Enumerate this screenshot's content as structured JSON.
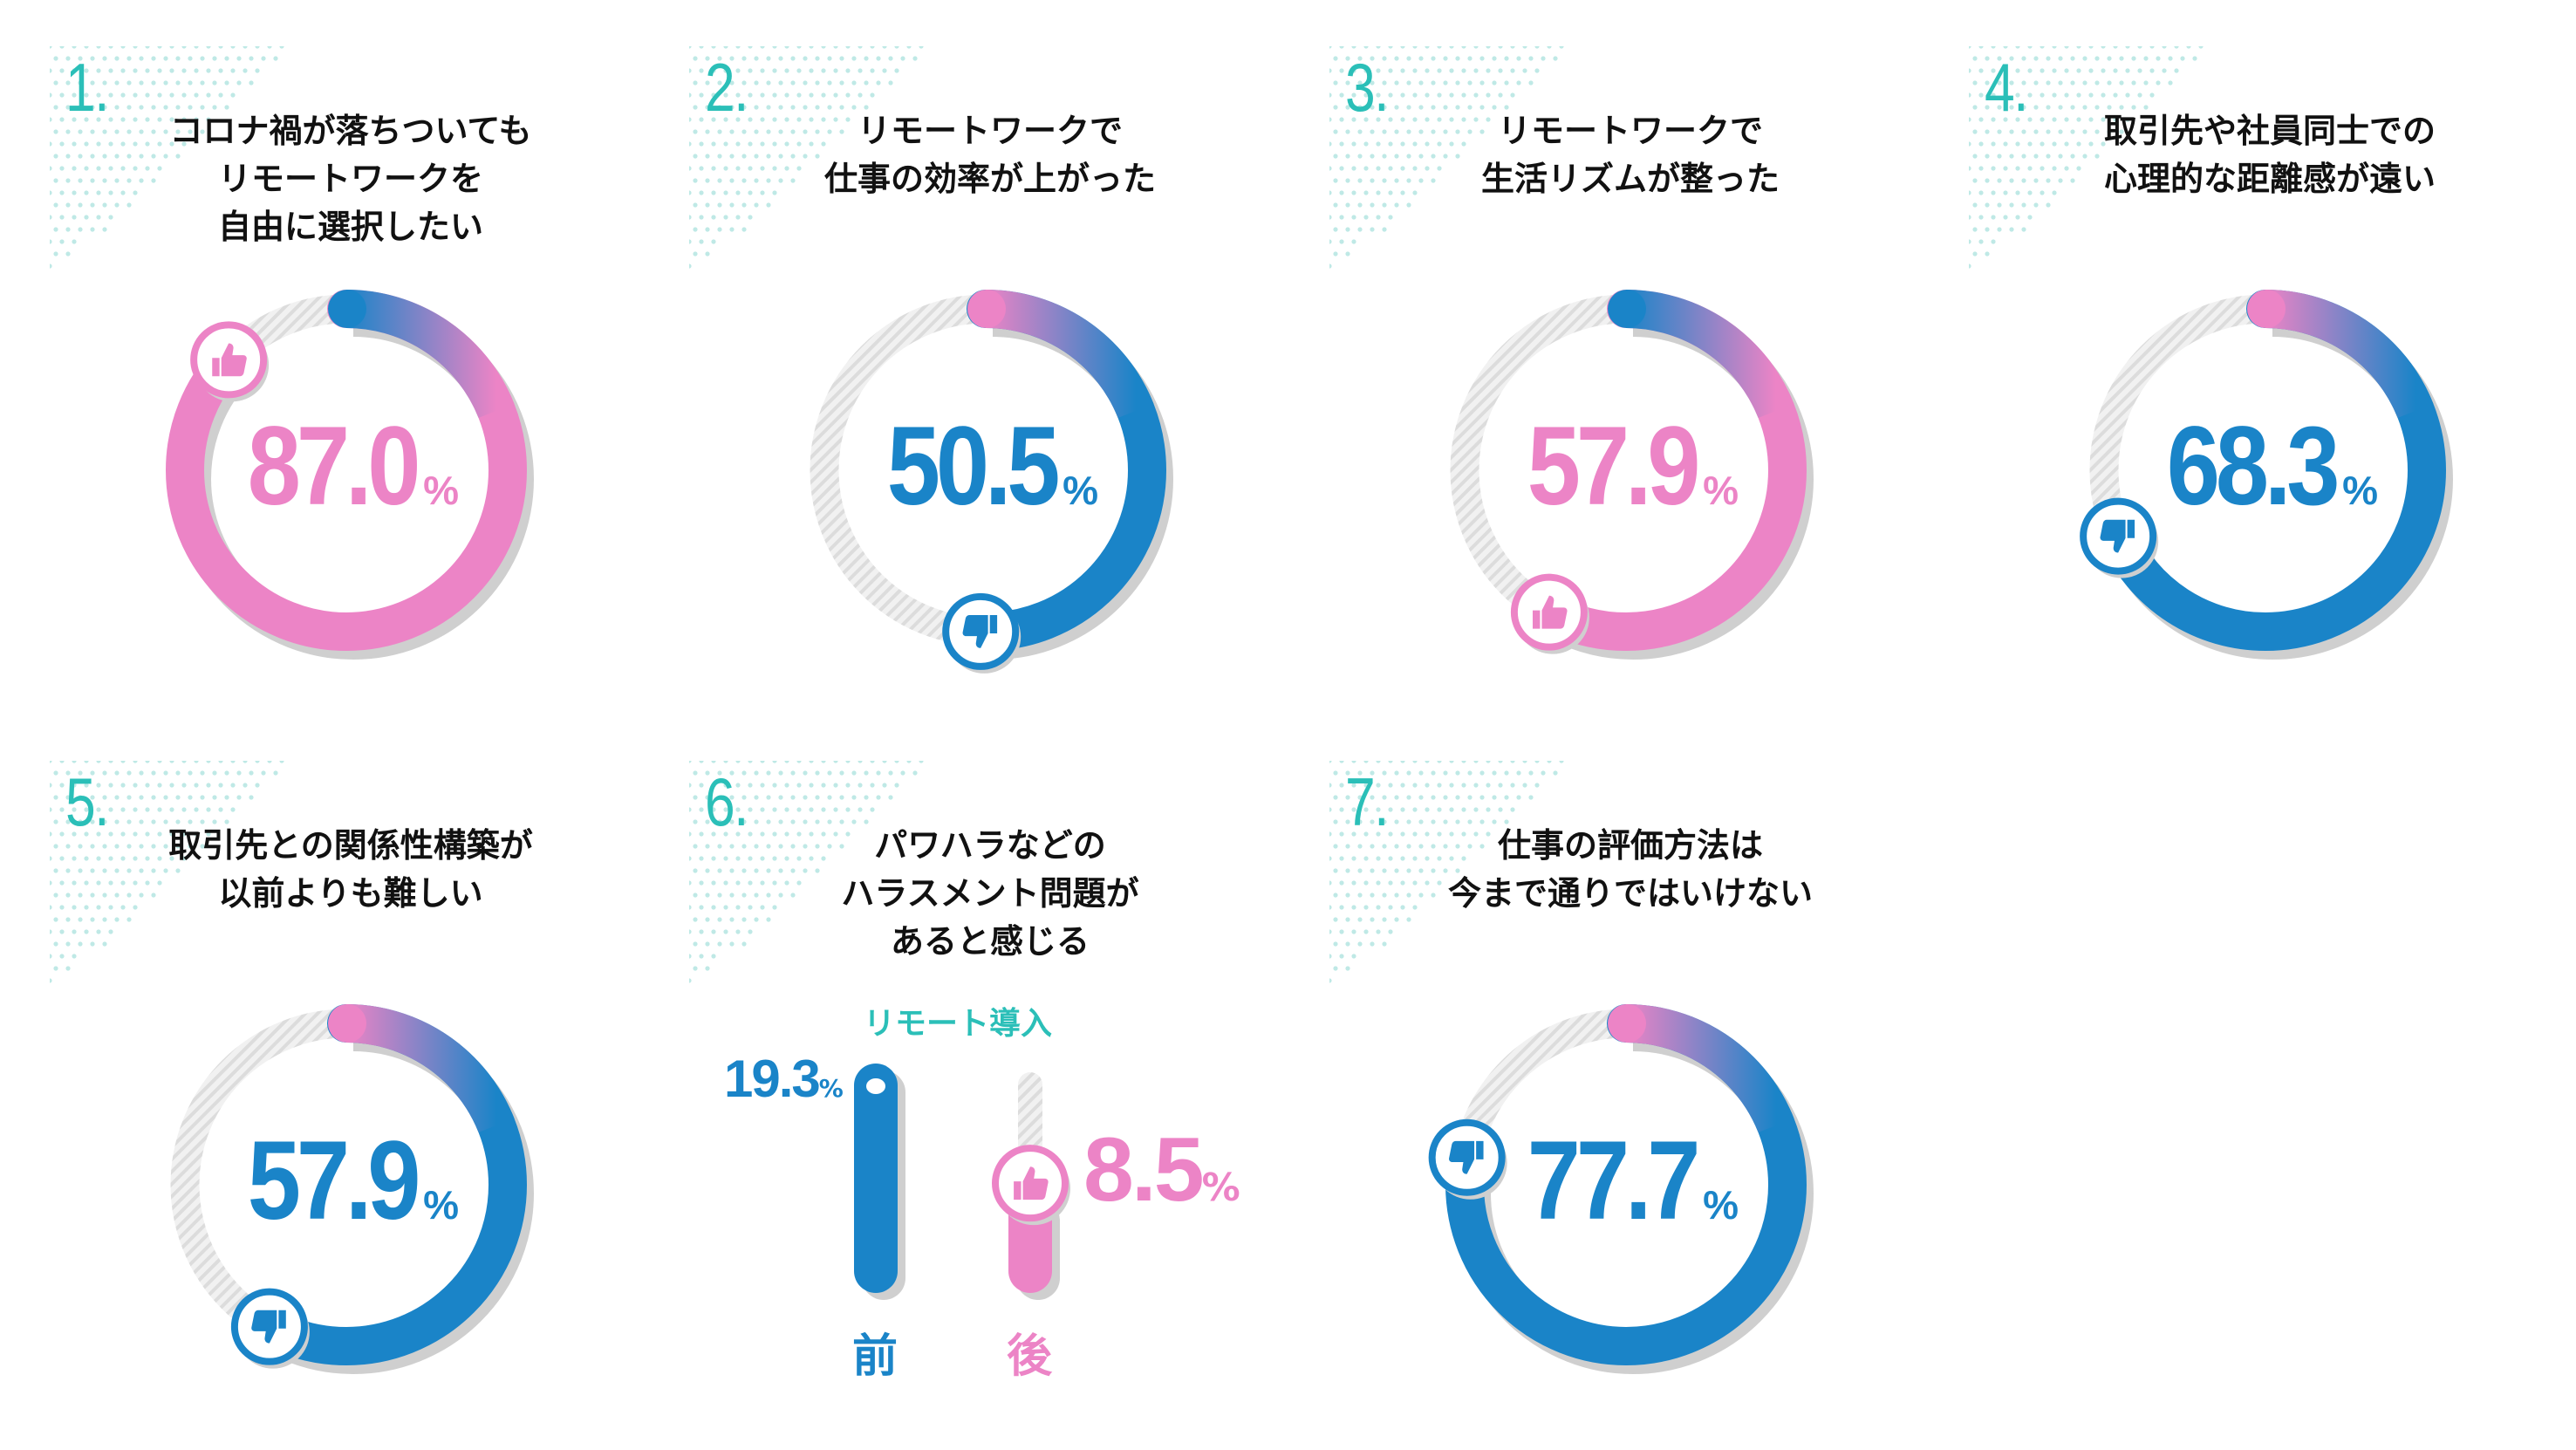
{
  "colors": {
    "pink": "#ec84c6",
    "blue": "#1a84c8",
    "teal": "#2bbfb8",
    "track": "#e4e4e4",
    "shadow": "#cfcfcf"
  },
  "panels": [
    {
      "number": "1.",
      "title": [
        "コロナ禍が落ちついても",
        "リモートワークを",
        "自由に選択したい"
      ],
      "value": "87.0",
      "unit": "%",
      "tone": "pink",
      "icon": "thumbs-up-icon"
    },
    {
      "number": "2.",
      "title": [
        "リモートワークで",
        "仕事の効率が上がった"
      ],
      "value": "50.5",
      "unit": "%",
      "tone": "blue",
      "icon": "thumbs-down-icon"
    },
    {
      "number": "3.",
      "title": [
        "リモートワークで",
        "生活リズムが整った"
      ],
      "value": "57.9",
      "unit": "%",
      "tone": "pink",
      "icon": "thumbs-up-icon"
    },
    {
      "number": "4.",
      "title": [
        "取引先や社員同士での",
        "心理的な距離感が遠い"
      ],
      "value": "68.3",
      "unit": "%",
      "tone": "blue",
      "icon": "thumbs-down-icon"
    },
    {
      "number": "5.",
      "title": [
        "取引先との関係性構築が",
        "以前よりも難しい"
      ],
      "value": "57.9",
      "unit": "%",
      "tone": "blue",
      "icon": "thumbs-down-icon"
    },
    {
      "number": "6.",
      "title": [
        "パワハラなどの",
        "ハラスメント問題が",
        "あると感じる"
      ]
    },
    {
      "number": "7.",
      "title": [
        "仕事の評価方法は",
        "今まで通りではいけない"
      ],
      "value": "77.7",
      "unit": "%",
      "tone": "blue",
      "icon": "thumbs-down-icon"
    }
  ],
  "chart_data": [
    {
      "type": "pie",
      "title": "コロナ禍が落ちついてもリモートワークを自由に選択したい",
      "values": [
        87.0
      ],
      "unit": "%"
    },
    {
      "type": "pie",
      "title": "リモートワークで仕事の効率が上がった",
      "values": [
        50.5
      ],
      "unit": "%"
    },
    {
      "type": "pie",
      "title": "リモートワークで生活リズムが整った",
      "values": [
        57.9
      ],
      "unit": "%"
    },
    {
      "type": "pie",
      "title": "取引先や社員同士での心理的な距離感が遠い",
      "values": [
        68.3
      ],
      "unit": "%"
    },
    {
      "type": "pie",
      "title": "取引先との関係性構築が以前よりも難しい",
      "values": [
        57.9
      ],
      "unit": "%"
    },
    {
      "type": "bar",
      "title": "パワハラなどのハラスメント問題があると感じる",
      "legend": "リモート導入",
      "categories": [
        "前",
        "後"
      ],
      "values": [
        19.3,
        8.5
      ],
      "labels": [
        "19.3",
        "8.5"
      ],
      "unit": "%",
      "ylim": [
        0,
        19.3
      ]
    },
    {
      "type": "pie",
      "title": "仕事の評価方法は今まで通りではいけない",
      "values": [
        77.7
      ],
      "unit": "%"
    }
  ]
}
